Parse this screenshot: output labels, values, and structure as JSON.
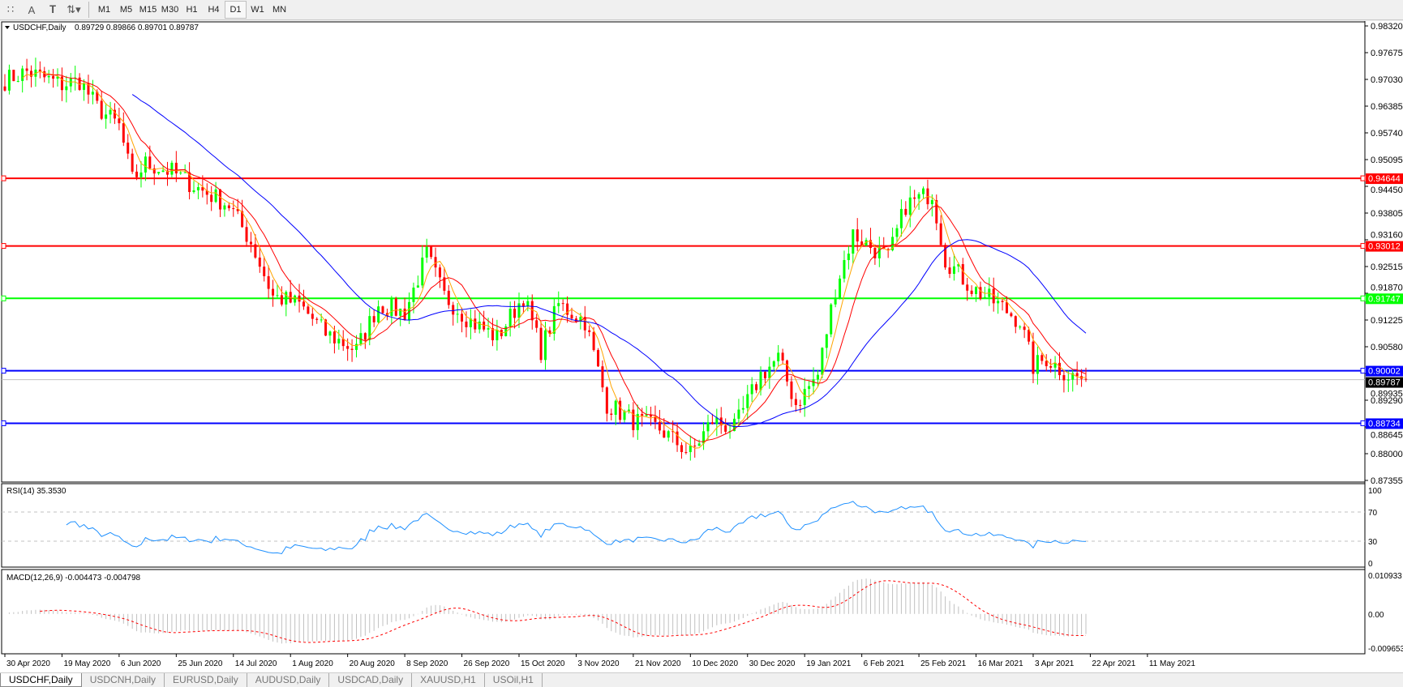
{
  "toolbar": {
    "icons": [
      "grid-icon",
      "text-icon",
      "text-label-icon",
      "arrows-icon"
    ],
    "text_tool": "A",
    "periods": [
      "M1",
      "M5",
      "M15",
      "M30",
      "H1",
      "H4",
      "D1",
      "W1",
      "MN"
    ],
    "active_period": "D1"
  },
  "chart": {
    "title": "USDCHF,Daily",
    "ohlc": "0.89729 0.89866 0.89701 0.89787",
    "price_ticks": [
      "0.98320",
      "0.97675",
      "0.97030",
      "0.96385",
      "0.95740",
      "0.95095",
      "0.94450",
      "0.93805",
      "0.93160",
      "0.92515",
      "0.91870",
      "0.91225",
      "0.90580",
      "0.89935",
      "0.89290",
      "0.88645",
      "0.88000",
      "0.87355"
    ],
    "ylim": [
      0.87355,
      0.9832
    ],
    "current_price": "0.89787",
    "levels": [
      {
        "value": "0.94644",
        "color": "#ff0000"
      },
      {
        "value": "0.93012",
        "color": "#ff0000"
      },
      {
        "value": "0.91747",
        "color": "#00ff00"
      },
      {
        "value": "0.90002",
        "color": "#0000ff"
      },
      {
        "value": "0.88734",
        "color": "#0000ff"
      }
    ],
    "bull_color": "#00ff00",
    "bear_color": "#ff0000",
    "ma_colors": [
      "#ffa500",
      "#ff0000",
      "#0000ff"
    ],
    "date_ticks": [
      "30 Apr 2020",
      "19 May 2020",
      "6 Jun 2020",
      "25 Jun 2020",
      "14 Jul 2020",
      "1 Aug 2020",
      "20 Aug 2020",
      "8 Sep 2020",
      "26 Sep 2020",
      "15 Oct 2020",
      "3 Nov 2020",
      "21 Nov 2020",
      "10 Dec 2020",
      "30 Dec 2020",
      "19 Jan 2021",
      "6 Feb 2021",
      "25 Feb 2021",
      "16 Mar 2021",
      "3 Apr 2021",
      "22 Apr 2021",
      "11 May 2021"
    ]
  },
  "chart_data": {
    "type": "candlestick",
    "close_anchors": [
      [
        "2020-04-30",
        0.9701
      ],
      [
        "2020-05-07",
        0.9722
      ],
      [
        "2020-05-19",
        0.969
      ],
      [
        "2020-05-25",
        0.97
      ],
      [
        "2020-05-29",
        0.9636
      ],
      [
        "2020-06-05",
        0.959
      ],
      [
        "2020-06-10",
        0.946
      ],
      [
        "2020-06-15",
        0.95
      ],
      [
        "2020-06-23",
        0.948
      ],
      [
        "2020-07-01",
        0.944
      ],
      [
        "2020-07-10",
        0.94
      ],
      [
        "2020-07-17",
        0.931
      ],
      [
        "2020-07-24",
        0.918
      ],
      [
        "2020-08-03",
        0.916
      ],
      [
        "2020-08-11",
        0.909
      ],
      [
        "2020-08-20",
        0.905
      ],
      [
        "2020-08-27",
        0.916
      ],
      [
        "2020-09-04",
        0.914
      ],
      [
        "2020-09-11",
        0.928
      ],
      [
        "2020-09-17",
        0.918
      ],
      [
        "2020-09-25",
        0.912
      ],
      [
        "2020-10-05",
        0.908
      ],
      [
        "2020-10-13",
        0.918
      ],
      [
        "2020-10-19",
        0.905
      ],
      [
        "2020-10-23",
        0.916
      ],
      [
        "2020-11-02",
        0.912
      ],
      [
        "2020-11-09",
        0.892
      ],
      [
        "2020-11-17",
        0.888
      ],
      [
        "2020-11-25",
        0.886
      ],
      [
        "2020-12-04",
        0.88
      ],
      [
        "2020-12-11",
        0.888
      ],
      [
        "2020-12-18",
        0.886
      ],
      [
        "2020-12-28",
        0.899
      ],
      [
        "2021-01-01",
        0.903
      ],
      [
        "2021-01-07",
        0.892
      ],
      [
        "2021-01-14",
        0.899
      ],
      [
        "2021-01-20",
        0.92
      ],
      [
        "2021-01-26",
        0.933
      ],
      [
        "2021-02-05",
        0.927
      ],
      [
        "2021-02-11",
        0.94
      ],
      [
        "2021-02-19",
        0.943
      ],
      [
        "2021-02-24",
        0.927
      ],
      [
        "2021-03-04",
        0.92
      ],
      [
        "2021-03-12",
        0.916
      ],
      [
        "2021-03-19",
        0.912
      ],
      [
        "2021-03-24",
        0.901
      ],
      [
        "2021-03-29",
        0.903
      ],
      [
        "2021-04-05",
        0.899
      ],
      [
        "2021-04-09",
        0.89787
      ]
    ],
    "indicators": [
      "MA fast",
      "MA medium",
      "MA slow"
    ],
    "rsi": {
      "label": "RSI(14) 35.3530",
      "ticks": [
        "100",
        "70",
        "30",
        "0"
      ],
      "levels": [
        70,
        30
      ],
      "color": "#1e90ff"
    },
    "macd": {
      "label": "MACD(12,26,9) -0.004473 -0.004798",
      "ticks": [
        "0.010933",
        "0.00",
        "-0.009653"
      ],
      "ylim": [
        -0.009653,
        0.010933
      ]
    }
  },
  "tabs": [
    "USDCHF,Daily",
    "USDCNH,Daily",
    "EURUSD,Daily",
    "AUDUSD,Daily",
    "USDCAD,Daily",
    "XAUUSD,H1",
    "USOil,H1"
  ],
  "active_tab": "USDCHF,Daily"
}
